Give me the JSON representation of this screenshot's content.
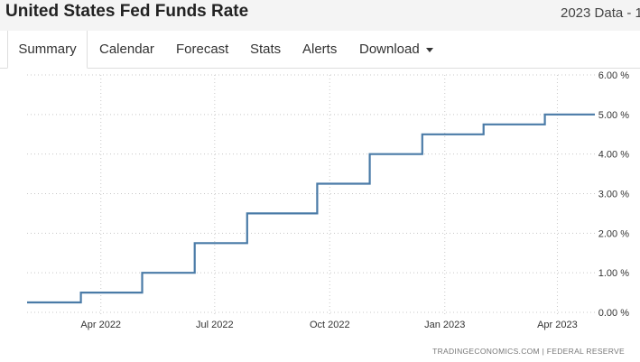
{
  "header": {
    "title": "United States Fed Funds Rate",
    "period": "2023 Data - 1"
  },
  "tabs": [
    {
      "label": "Summary",
      "active": true
    },
    {
      "label": "Calendar",
      "active": false
    },
    {
      "label": "Forecast",
      "active": false
    },
    {
      "label": "Stats",
      "active": false
    },
    {
      "label": "Alerts",
      "active": false
    },
    {
      "label": "Download",
      "active": false,
      "dropdown": true
    }
  ],
  "chart_data": {
    "type": "line",
    "step": true,
    "x_labels": [
      "Apr 2022",
      "Jul 2022",
      "Oct 2022",
      "Jan 2023",
      "Apr 2023"
    ],
    "y_tick_labels": [
      "6.00 %",
      "5.00 %",
      "4.00 %",
      "3.00 %",
      "2.00 %",
      "1.00 %",
      "0.00 %"
    ],
    "ylim": [
      0,
      6
    ],
    "x_start": "2022-02-01",
    "x_end": "2023-05-01",
    "series": [
      {
        "color": "#4a7ba7",
        "points": [
          {
            "date": "2022-02-01",
            "value": 0.25
          },
          {
            "date": "2022-03-16",
            "value": 0.5
          },
          {
            "date": "2022-05-04",
            "value": 1.0
          },
          {
            "date": "2022-06-15",
            "value": 1.75
          },
          {
            "date": "2022-07-27",
            "value": 2.5
          },
          {
            "date": "2022-09-21",
            "value": 3.25
          },
          {
            "date": "2022-11-02",
            "value": 4.0
          },
          {
            "date": "2022-12-14",
            "value": 4.5
          },
          {
            "date": "2023-02-01",
            "value": 4.75
          },
          {
            "date": "2023-03-22",
            "value": 5.0
          },
          {
            "date": "2023-05-01",
            "value": 5.0
          }
        ]
      }
    ],
    "grid": true,
    "source": "TRADINGECONOMICS.COM  |  FEDERAL RESERVE"
  }
}
